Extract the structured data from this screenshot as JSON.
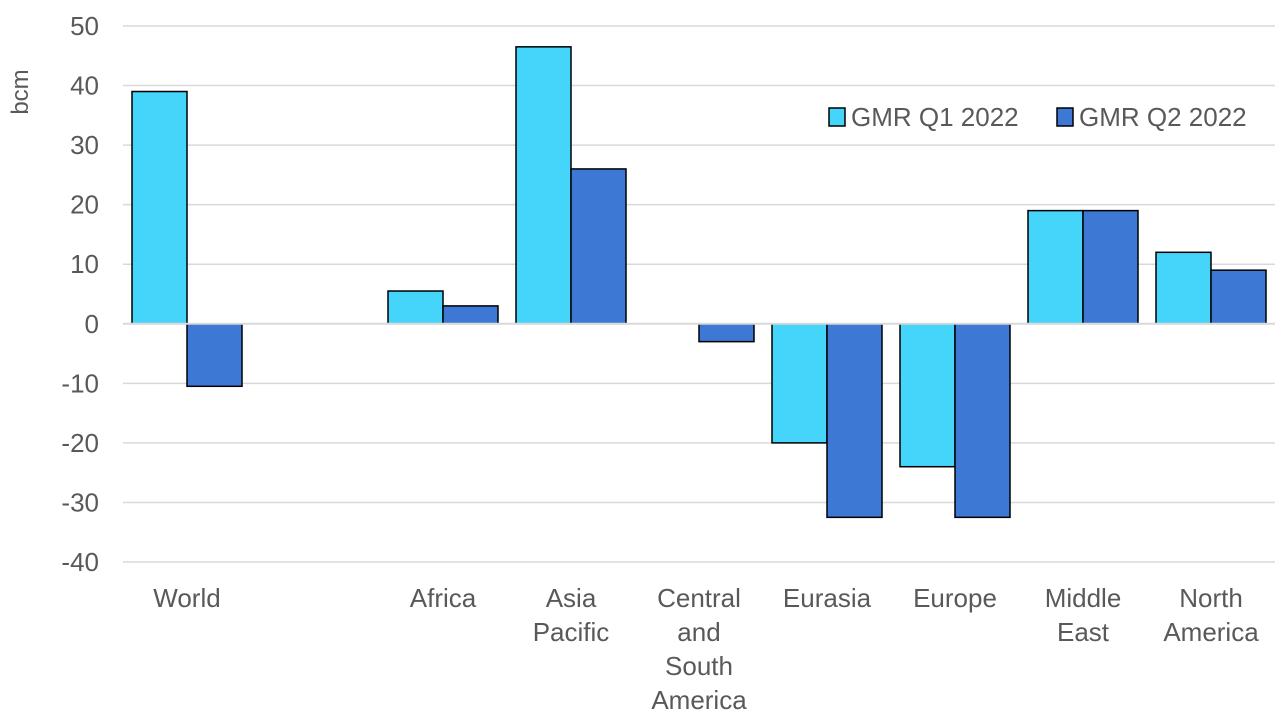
{
  "chart_data": {
    "type": "bar",
    "ylabel": "bcm",
    "ylim": [
      -40,
      50
    ],
    "y_ticks": [
      50,
      40,
      30,
      20,
      10,
      0,
      -10,
      -20,
      -30,
      -40
    ],
    "grid": true,
    "legend_position": "top-right",
    "categories": [
      "World",
      "",
      "Africa",
      "Asia Pacific",
      "Central and South America",
      "Eurasia",
      "Europe",
      "Middle East",
      "North America"
    ],
    "category_label_lines": [
      [
        "World"
      ],
      [],
      [
        "Africa"
      ],
      [
        "Asia",
        "Pacific"
      ],
      [
        "Central",
        "and",
        "South",
        "America"
      ],
      [
        "Eurasia"
      ],
      [
        "Europe"
      ],
      [
        "Middle",
        "East"
      ],
      [
        "North",
        "America"
      ]
    ],
    "series": [
      {
        "name": "GMR Q1 2022",
        "color": "#45D4FA",
        "values": [
          39,
          null,
          5.5,
          46.5,
          0,
          -20,
          -24,
          19,
          12
        ]
      },
      {
        "name": "GMR Q2 2022",
        "color": "#3C78D4",
        "values": [
          -10.5,
          null,
          3,
          26,
          -3,
          -32.5,
          -32.5,
          19,
          9
        ]
      }
    ],
    "colors": {
      "grid": "#D9D9D9",
      "text": "#595959",
      "bar_outline": "#000000"
    }
  }
}
